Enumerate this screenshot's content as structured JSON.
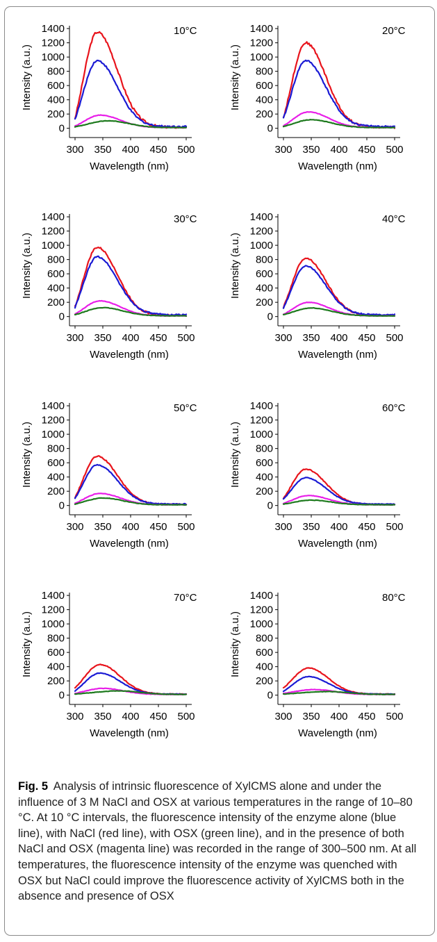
{
  "chart_data": [
    {
      "type": "line",
      "title": "10°C",
      "xlabel": "Wavelength (nm)",
      "ylabel": "Intensity (a.u.)",
      "xlim": [
        300,
        500
      ],
      "ylim": [
        0,
        1400
      ],
      "grid": false,
      "xticks": [
        "300",
        "350",
        "400",
        "450",
        "500"
      ],
      "yticks": [
        "0",
        "200",
        "400",
        "600",
        "800",
        "1000",
        "1200",
        "1400"
      ],
      "series": [
        {
          "color": "#e8141c",
          "peak_x": 340,
          "peak_y": 1350,
          "end_y": 15,
          "start_y": 140
        },
        {
          "color": "#1a1ad4",
          "peak_x": 340,
          "peak_y": 950,
          "end_y": 25,
          "start_y": 130
        },
        {
          "color": "#e81ee8",
          "peak_x": 345,
          "peak_y": 185,
          "end_y": 10,
          "start_y": 30
        },
        {
          "color": "#1e7a1e",
          "peak_x": 360,
          "peak_y": 105,
          "end_y": 10,
          "start_y": 20
        }
      ]
    },
    {
      "type": "line",
      "title": "20°C",
      "xlabel": "Wavelength (nm)",
      "ylabel": "Intensity (a.u.)",
      "xlim": [
        300,
        500
      ],
      "ylim": [
        0,
        1400
      ],
      "grid": false,
      "xticks": [
        "300",
        "350",
        "400",
        "450",
        "500"
      ],
      "yticks": [
        "0",
        "200",
        "400",
        "600",
        "800",
        "1000",
        "1200",
        "1400"
      ],
      "series": [
        {
          "color": "#e8141c",
          "peak_x": 340,
          "peak_y": 1200,
          "end_y": 15,
          "start_y": 150
        },
        {
          "color": "#1a1ad4",
          "peak_x": 340,
          "peak_y": 950,
          "end_y": 25,
          "start_y": 140
        },
        {
          "color": "#e81ee8",
          "peak_x": 345,
          "peak_y": 230,
          "end_y": 10,
          "start_y": 35
        },
        {
          "color": "#1e7a1e",
          "peak_x": 350,
          "peak_y": 120,
          "end_y": 10,
          "start_y": 25
        }
      ]
    },
    {
      "type": "line",
      "title": "30°C",
      "xlabel": "Wavelength (nm)",
      "ylabel": "Intensity (a.u.)",
      "xlim": [
        300,
        500
      ],
      "ylim": [
        0,
        1400
      ],
      "grid": false,
      "xticks": [
        "300",
        "350",
        "400",
        "450",
        "500"
      ],
      "yticks": [
        "0",
        "200",
        "400",
        "600",
        "800",
        "1000",
        "1200",
        "1400"
      ],
      "series": [
        {
          "color": "#e8141c",
          "peak_x": 340,
          "peak_y": 970,
          "end_y": 15,
          "start_y": 140
        },
        {
          "color": "#1a1ad4",
          "peak_x": 340,
          "peak_y": 840,
          "end_y": 25,
          "start_y": 130
        },
        {
          "color": "#e81ee8",
          "peak_x": 345,
          "peak_y": 220,
          "end_y": 10,
          "start_y": 35
        },
        {
          "color": "#1e7a1e",
          "peak_x": 350,
          "peak_y": 125,
          "end_y": 10,
          "start_y": 25
        }
      ]
    },
    {
      "type": "line",
      "title": "40°C",
      "xlabel": "Wavelength (nm)",
      "ylabel": "Intensity (a.u.)",
      "xlim": [
        300,
        500
      ],
      "ylim": [
        0,
        1400
      ],
      "grid": false,
      "xticks": [
        "300",
        "350",
        "400",
        "450",
        "500"
      ],
      "yticks": [
        "0",
        "200",
        "400",
        "600",
        "800",
        "1000",
        "1200",
        "1400"
      ],
      "series": [
        {
          "color": "#e8141c",
          "peak_x": 340,
          "peak_y": 820,
          "end_y": 15,
          "start_y": 130
        },
        {
          "color": "#1a1ad4",
          "peak_x": 340,
          "peak_y": 710,
          "end_y": 25,
          "start_y": 120
        },
        {
          "color": "#e81ee8",
          "peak_x": 345,
          "peak_y": 200,
          "end_y": 10,
          "start_y": 30
        },
        {
          "color": "#1e7a1e",
          "peak_x": 350,
          "peak_y": 120,
          "end_y": 10,
          "start_y": 25
        }
      ]
    },
    {
      "type": "line",
      "title": "50°C",
      "xlabel": "Wavelength (nm)",
      "ylabel": "Intensity (a.u.)",
      "xlim": [
        300,
        500
      ],
      "ylim": [
        0,
        1400
      ],
      "grid": false,
      "xticks": [
        "300",
        "350",
        "400",
        "450",
        "500"
      ],
      "yticks": [
        "0",
        "200",
        "400",
        "600",
        "800",
        "1000",
        "1200",
        "1400"
      ],
      "series": [
        {
          "color": "#e8141c",
          "peak_x": 340,
          "peak_y": 690,
          "end_y": 15,
          "start_y": 110
        },
        {
          "color": "#1a1ad4",
          "peak_x": 340,
          "peak_y": 570,
          "end_y": 20,
          "start_y": 100
        },
        {
          "color": "#e81ee8",
          "peak_x": 345,
          "peak_y": 170,
          "end_y": 10,
          "start_y": 30
        },
        {
          "color": "#1e7a1e",
          "peak_x": 350,
          "peak_y": 105,
          "end_y": 10,
          "start_y": 20
        }
      ]
    },
    {
      "type": "line",
      "title": "60°C",
      "xlabel": "Wavelength (nm)",
      "ylabel": "Intensity (a.u.)",
      "xlim": [
        300,
        500
      ],
      "ylim": [
        0,
        1400
      ],
      "grid": false,
      "xticks": [
        "300",
        "350",
        "400",
        "450",
        "500"
      ],
      "yticks": [
        "0",
        "200",
        "400",
        "600",
        "800",
        "1000",
        "1200",
        "1400"
      ],
      "series": [
        {
          "color": "#e8141c",
          "peak_x": 340,
          "peak_y": 510,
          "end_y": 15,
          "start_y": 100
        },
        {
          "color": "#1a1ad4",
          "peak_x": 340,
          "peak_y": 390,
          "end_y": 20,
          "start_y": 90
        },
        {
          "color": "#e81ee8",
          "peak_x": 345,
          "peak_y": 140,
          "end_y": 10,
          "start_y": 30
        },
        {
          "color": "#1e7a1e",
          "peak_x": 350,
          "peak_y": 75,
          "end_y": 10,
          "start_y": 20
        }
      ]
    },
    {
      "type": "line",
      "title": "70°C",
      "xlabel": "Wavelength (nm)",
      "ylabel": "Intensity (a.u.)",
      "xlim": [
        300,
        500
      ],
      "ylim": [
        0,
        1400
      ],
      "grid": false,
      "xticks": [
        "300",
        "350",
        "400",
        "450",
        "500"
      ],
      "yticks": [
        "0",
        "200",
        "400",
        "600",
        "800",
        "1000",
        "1200",
        "1400"
      ],
      "series": [
        {
          "color": "#e8141c",
          "peak_x": 345,
          "peak_y": 430,
          "end_y": 15,
          "start_y": 100
        },
        {
          "color": "#1a1ad4",
          "peak_x": 345,
          "peak_y": 310,
          "end_y": 15,
          "start_y": 60
        },
        {
          "color": "#e81ee8",
          "peak_x": 350,
          "peak_y": 95,
          "end_y": 10,
          "start_y": 25
        },
        {
          "color": "#1e7a1e",
          "peak_x": 380,
          "peak_y": 60,
          "end_y": 10,
          "start_y": 15
        }
      ]
    },
    {
      "type": "line",
      "title": "80°C",
      "xlabel": "Wavelength (nm)",
      "ylabel": "Intensity (a.u.)",
      "xlim": [
        300,
        500
      ],
      "ylim": [
        0,
        1400
      ],
      "grid": false,
      "xticks": [
        "300",
        "350",
        "400",
        "450",
        "500"
      ],
      "yticks": [
        "0",
        "200",
        "400",
        "600",
        "800",
        "1000",
        "1200",
        "1400"
      ],
      "series": [
        {
          "color": "#e8141c",
          "peak_x": 345,
          "peak_y": 380,
          "end_y": 15,
          "start_y": 100
        },
        {
          "color": "#1a1ad4",
          "peak_x": 345,
          "peak_y": 260,
          "end_y": 15,
          "start_y": 55
        },
        {
          "color": "#e81ee8",
          "peak_x": 355,
          "peak_y": 80,
          "end_y": 10,
          "start_y": 25
        },
        {
          "color": "#1e7a1e",
          "peak_x": 380,
          "peak_y": 50,
          "end_y": 10,
          "start_y": 15
        }
      ]
    }
  ],
  "caption": {
    "label": "Fig. 5",
    "text": "Analysis of intrinsic fluorescence of XylCMS alone and under the influence of 3 M NaCl and OSX at various temperatures in the range of 10–80 °C. At 10 °C intervals, the fluorescence intensity of the enzyme alone (blue line), with NaCl (red line), with OSX (green line), and in the presence of both NaCl and OSX (magenta line) was recorded in the range of 300–500 nm. At all temperatures, the fluorescence intensity of the enzyme was quenched with OSX but NaCl could improve the fluorescence activity of XylCMS both in the absence and presence of OSX"
  }
}
